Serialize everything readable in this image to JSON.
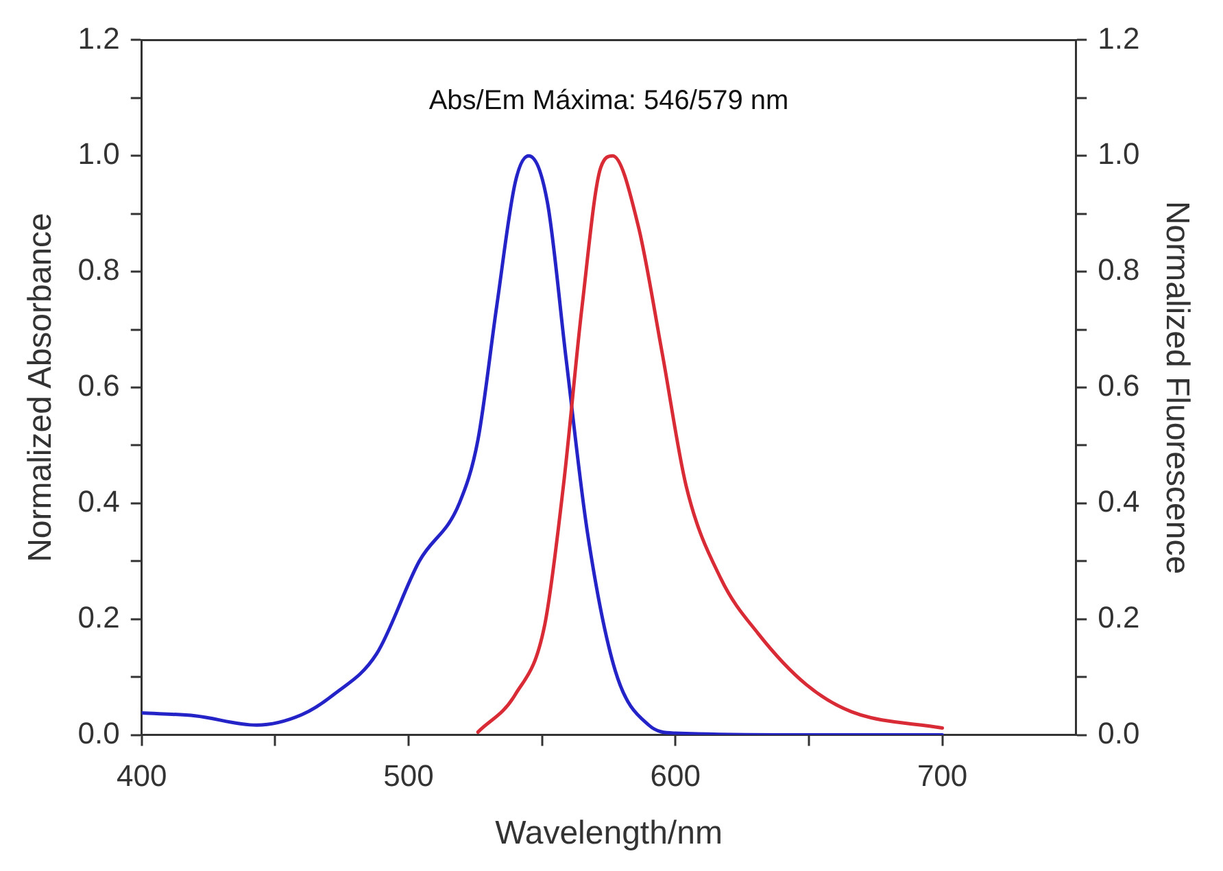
{
  "chart_data": {
    "type": "line",
    "xlabel": "Wavelength/nm",
    "ylabel": "Normalized Absorbance",
    "y2label": "Normalized Fluorescence",
    "annotations": [
      "Abs/Em Máxima: 546/579 nm"
    ],
    "xlim": [
      400,
      750
    ],
    "xticks": [
      400,
      {
        "value": 450,
        "label": null
      },
      500,
      {
        "value": 550,
        "label": null
      },
      600,
      {
        "value": 650,
        "label": null
      },
      700
    ],
    "ylim": [
      0,
      1.2
    ],
    "yticks": [
      "0.0",
      {
        "value": 0.1,
        "label": null
      },
      {
        "value": 0.2,
        "label": "0.2"
      },
      {
        "value": 0.3,
        "label": null
      },
      {
        "value": 0.4,
        "label": "0.4"
      },
      {
        "value": 0.5,
        "label": null
      },
      {
        "value": 0.6,
        "label": "0.6"
      },
      {
        "value": 0.7,
        "label": null
      },
      {
        "value": 0.8,
        "label": "0.8"
      },
      {
        "value": 0.9,
        "label": null
      },
      {
        "value": 1,
        "label": "1.0"
      },
      {
        "value": 1.1,
        "label": null
      },
      {
        "value": 1.2,
        "label": "1.2"
      }
    ],
    "y2lim": [
      0,
      1.2
    ],
    "y2ticks": [
      {
        "value": 0,
        "label": "0.0"
      },
      {
        "value": 0.1,
        "label": null
      },
      {
        "value": 0.2,
        "label": "0.2"
      },
      {
        "value": 0.3,
        "label": null
      },
      {
        "value": 0.4,
        "label": "0.4"
      },
      {
        "value": 0.5,
        "label": null
      },
      {
        "value": 0.6,
        "label": "0.6"
      },
      {
        "value": 0.7,
        "label": null
      },
      {
        "value": 0.8,
        "label": "0.8"
      },
      {
        "value": 0.9,
        "label": null
      },
      {
        "value": 1,
        "label": "1.0"
      },
      {
        "value": 1.1,
        "label": null
      },
      {
        "value": 1.2,
        "label": "1.2"
      }
    ],
    "grid": false,
    "legend": false,
    "marker": "none",
    "line_style": "solid",
    "series": [
      {
        "color": "#2323c8",
        "x": [
          400,
          420,
          443,
          460,
          472,
          488,
          504,
          519,
          526,
          533,
          540,
          545,
          552,
          559,
          567,
          577.5,
          590,
          600,
          650,
          700
        ],
        "values": [
          0.038,
          0.033,
          0.017,
          0.035,
          0.07,
          0.14,
          0.3,
          0.4,
          0.51,
          0.74,
          0.955,
          1.0,
          0.92,
          0.65,
          0.35,
          0.11,
          0.017,
          0.003,
          0,
          0
        ]
      },
      {
        "color": "#d92b35",
        "axis": "y2",
        "x": [
          526,
          540,
          551,
          558,
          565,
          572,
          576.5,
          586,
          595,
          604,
          617,
          631,
          649,
          666,
          700
        ],
        "values": [
          0.005,
          0.07,
          0.19,
          0.43,
          0.74,
          0.98,
          1.0,
          0.88,
          0.66,
          0.43,
          0.27,
          0.175,
          0.087,
          0.04,
          0.012
        ]
      }
    ]
  }
}
